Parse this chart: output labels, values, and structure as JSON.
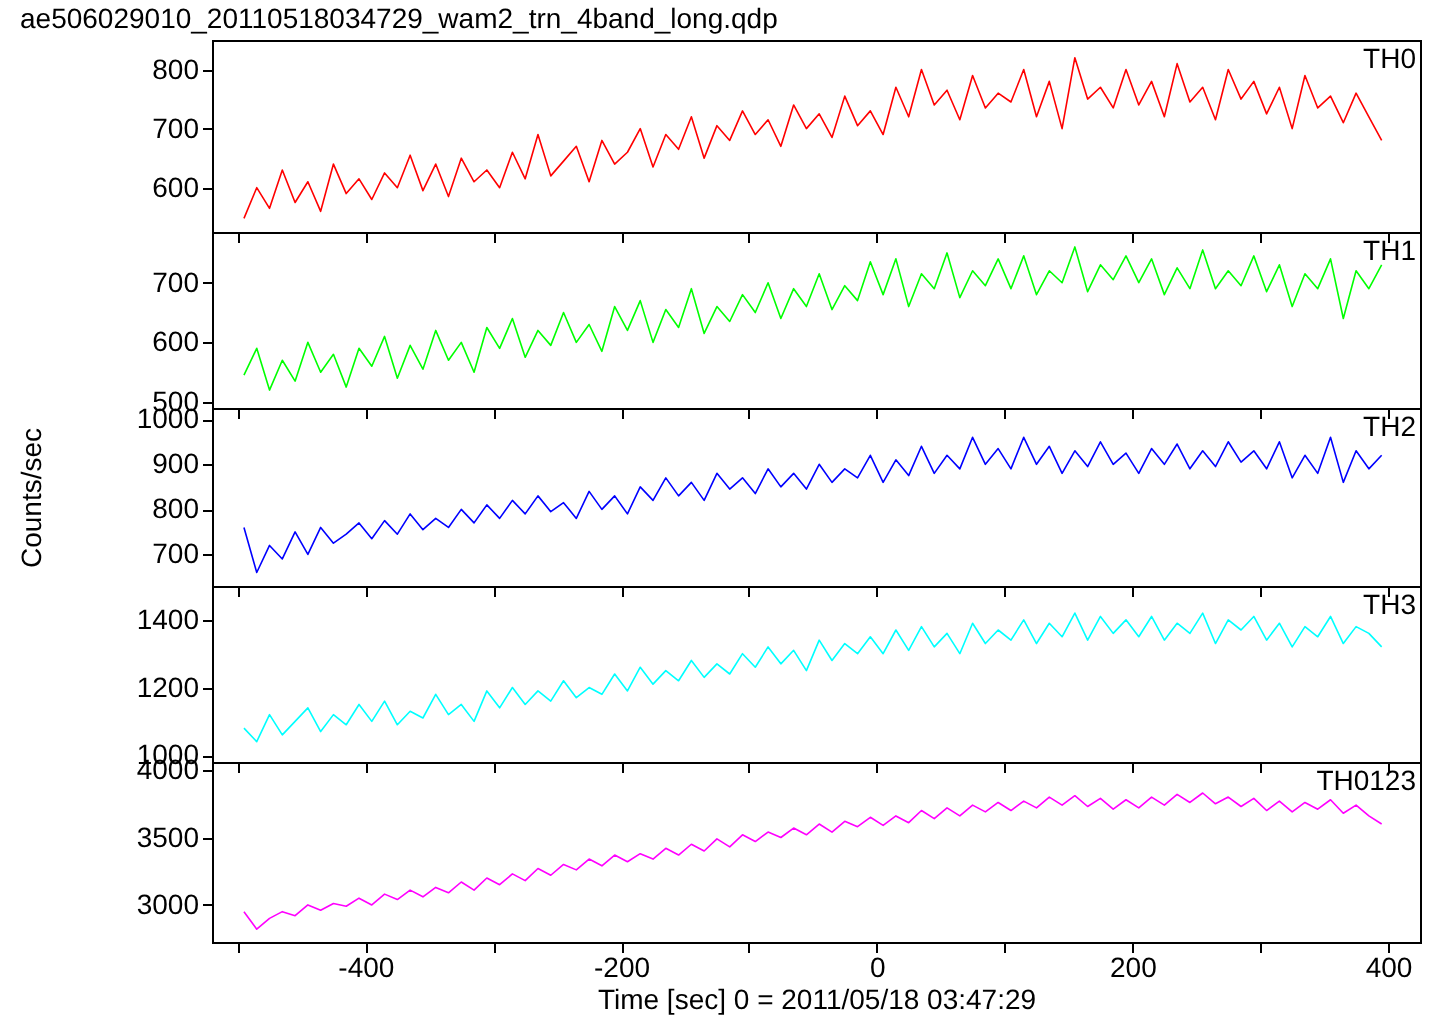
{
  "chart_data": [
    {
      "type": "line",
      "title": "ae506029010_20110518034729_wam2_trn_4band_long.qdp",
      "tick_labels": "y",
      "legend": false,
      "xlim": [
        -520,
        425
      ],
      "xticks": [
        {
          "value": -500,
          "label": null
        },
        -400,
        {
          "value": -300,
          "label": null
        },
        -200,
        {
          "value": -100,
          "label": null
        },
        0,
        {
          "value": 100,
          "label": null
        },
        200,
        {
          "value": 300,
          "label": null
        },
        400
      ],
      "ylim": [
        525,
        850
      ],
      "yticks": [
        600,
        700,
        800
      ],
      "x": [
        -495,
        -485,
        -475,
        -465,
        -455,
        -445,
        -435,
        -425,
        -415,
        -405,
        -395,
        -385,
        -375,
        -365,
        -355,
        -345,
        -335,
        -325,
        -315,
        -305,
        -295,
        -285,
        -275,
        -265,
        -255,
        -245,
        -235,
        -225,
        -215,
        -205,
        -195,
        -185,
        -175,
        -165,
        -155,
        -145,
        -135,
        -125,
        -115,
        -105,
        -95,
        -85,
        -75,
        -65,
        -55,
        -45,
        -35,
        -25,
        -15,
        -5,
        5,
        15,
        25,
        35,
        45,
        55,
        65,
        75,
        85,
        95,
        105,
        115,
        125,
        135,
        145,
        155,
        165,
        175,
        185,
        195,
        205,
        215,
        225,
        235,
        245,
        255,
        265,
        275,
        285,
        295,
        305,
        315,
        325,
        335,
        345,
        355,
        365,
        375,
        385,
        395
      ],
      "series": [
        {
          "name": "TH0",
          "color": "#ff0000",
          "values": [
            548,
            600,
            565,
            630,
            575,
            610,
            560,
            640,
            590,
            615,
            580,
            625,
            600,
            655,
            595,
            640,
            585,
            650,
            610,
            630,
            600,
            660,
            615,
            690,
            620,
            645,
            670,
            610,
            680,
            640,
            660,
            700,
            635,
            690,
            665,
            720,
            650,
            705,
            680,
            730,
            690,
            715,
            670,
            740,
            700,
            725,
            685,
            755,
            705,
            730,
            690,
            770,
            720,
            800,
            740,
            765,
            715,
            790,
            735,
            760,
            745,
            800,
            720,
            780,
            700,
            820,
            750,
            770,
            735,
            800,
            740,
            780,
            720,
            810,
            745,
            770,
            715,
            800,
            750,
            780,
            725,
            770,
            700,
            790,
            735,
            755,
            710,
            760,
            720,
            680
          ]
        }
      ]
    },
    {
      "type": "line",
      "tick_labels": "y",
      "legend": false,
      "xlim": [
        -520,
        425
      ],
      "xticks": [
        {
          "value": -500,
          "label": null
        },
        -400,
        {
          "value": -300,
          "label": null
        },
        -200,
        {
          "value": -100,
          "label": null
        },
        0,
        {
          "value": 100,
          "label": null
        },
        200,
        {
          "value": 300,
          "label": null
        },
        400
      ],
      "ylim": [
        490,
        785
      ],
      "yticks": [
        500,
        600,
        700
      ],
      "x": [
        -495,
        -485,
        -475,
        -465,
        -455,
        -445,
        -435,
        -425,
        -415,
        -405,
        -395,
        -385,
        -375,
        -365,
        -355,
        -345,
        -335,
        -325,
        -315,
        -305,
        -295,
        -285,
        -275,
        -265,
        -255,
        -245,
        -235,
        -225,
        -215,
        -205,
        -195,
        -185,
        -175,
        -165,
        -155,
        -145,
        -135,
        -125,
        -115,
        -105,
        -95,
        -85,
        -75,
        -65,
        -55,
        -45,
        -35,
        -25,
        -15,
        -5,
        5,
        15,
        25,
        35,
        45,
        55,
        65,
        75,
        85,
        95,
        105,
        115,
        125,
        135,
        145,
        155,
        165,
        175,
        185,
        195,
        205,
        215,
        225,
        235,
        245,
        255,
        265,
        275,
        285,
        295,
        305,
        315,
        325,
        335,
        345,
        355,
        365,
        375,
        385,
        395
      ],
      "series": [
        {
          "name": "TH1",
          "color": "#00ff00",
          "values": [
            545,
            590,
            520,
            570,
            535,
            600,
            550,
            580,
            525,
            590,
            560,
            610,
            540,
            595,
            555,
            620,
            570,
            600,
            550,
            625,
            590,
            640,
            575,
            620,
            595,
            650,
            600,
            630,
            585,
            660,
            620,
            670,
            600,
            655,
            625,
            690,
            615,
            660,
            635,
            680,
            650,
            700,
            640,
            690,
            660,
            715,
            655,
            695,
            670,
            735,
            680,
            740,
            660,
            715,
            690,
            750,
            675,
            720,
            695,
            740,
            690,
            745,
            680,
            720,
            700,
            760,
            685,
            730,
            705,
            745,
            700,
            740,
            680,
            725,
            690,
            755,
            690,
            720,
            695,
            745,
            685,
            730,
            660,
            715,
            690,
            740,
            640,
            720,
            690,
            730
          ]
        }
      ]
    },
    {
      "type": "line",
      "tick_labels": "y",
      "legend": false,
      "ylabel": "Counts/sec",
      "xlim": [
        -520,
        425
      ],
      "xticks": [
        {
          "value": -500,
          "label": null
        },
        -400,
        {
          "value": -300,
          "label": null
        },
        -200,
        {
          "value": -100,
          "label": null
        },
        0,
        {
          "value": 100,
          "label": null
        },
        200,
        {
          "value": 300,
          "label": null
        },
        400
      ],
      "ylim": [
        630,
        1025
      ],
      "yticks": [
        700,
        800,
        900,
        1000
      ],
      "x": [
        -495,
        -485,
        -475,
        -465,
        -455,
        -445,
        -435,
        -425,
        -415,
        -405,
        -395,
        -385,
        -375,
        -365,
        -355,
        -345,
        -335,
        -325,
        -315,
        -305,
        -295,
        -285,
        -275,
        -265,
        -255,
        -245,
        -235,
        -225,
        -215,
        -205,
        -195,
        -185,
        -175,
        -165,
        -155,
        -145,
        -135,
        -125,
        -115,
        -105,
        -95,
        -85,
        -75,
        -65,
        -55,
        -45,
        -35,
        -25,
        -15,
        -5,
        5,
        15,
        25,
        35,
        45,
        55,
        65,
        75,
        85,
        95,
        105,
        115,
        125,
        135,
        145,
        155,
        165,
        175,
        185,
        195,
        205,
        215,
        225,
        235,
        245,
        255,
        265,
        275,
        285,
        295,
        305,
        315,
        325,
        335,
        345,
        355,
        365,
        375,
        385,
        395
      ],
      "series": [
        {
          "name": "TH2",
          "color": "#0000ff",
          "values": [
            760,
            660,
            720,
            690,
            750,
            700,
            760,
            725,
            745,
            770,
            735,
            775,
            745,
            790,
            755,
            780,
            760,
            800,
            770,
            810,
            780,
            820,
            790,
            830,
            795,
            815,
            780,
            840,
            800,
            830,
            790,
            850,
            820,
            870,
            830,
            860,
            820,
            880,
            845,
            870,
            835,
            890,
            850,
            880,
            845,
            900,
            860,
            890,
            870,
            920,
            860,
            910,
            875,
            940,
            880,
            920,
            890,
            960,
            900,
            935,
            890,
            960,
            900,
            940,
            880,
            930,
            895,
            950,
            900,
            925,
            880,
            935,
            900,
            945,
            890,
            930,
            895,
            950,
            905,
            930,
            890,
            950,
            870,
            920,
            880,
            960,
            860,
            930,
            890,
            920
          ]
        }
      ]
    },
    {
      "type": "line",
      "tick_labels": "y",
      "legend": false,
      "xlim": [
        -520,
        425
      ],
      "xticks": [
        {
          "value": -500,
          "label": null
        },
        -400,
        {
          "value": -300,
          "label": null
        },
        -200,
        {
          "value": -100,
          "label": null
        },
        0,
        {
          "value": 100,
          "label": null
        },
        200,
        {
          "value": 300,
          "label": null
        },
        400
      ],
      "ylim": [
        980,
        1500
      ],
      "yticks": [
        1000,
        1200,
        1400
      ],
      "x": [
        -495,
        -485,
        -475,
        -465,
        -455,
        -445,
        -435,
        -425,
        -415,
        -405,
        -395,
        -385,
        -375,
        -365,
        -355,
        -345,
        -335,
        -325,
        -315,
        -305,
        -295,
        -285,
        -275,
        -265,
        -255,
        -245,
        -235,
        -225,
        -215,
        -205,
        -195,
        -185,
        -175,
        -165,
        -155,
        -145,
        -135,
        -125,
        -115,
        -105,
        -95,
        -85,
        -75,
        -65,
        -55,
        -45,
        -35,
        -25,
        -15,
        -5,
        5,
        15,
        25,
        35,
        45,
        55,
        65,
        75,
        85,
        95,
        105,
        115,
        125,
        135,
        145,
        155,
        165,
        175,
        185,
        195,
        205,
        215,
        225,
        235,
        245,
        255,
        265,
        275,
        285,
        295,
        305,
        315,
        325,
        335,
        345,
        355,
        365,
        375,
        385,
        395
      ],
      "series": [
        {
          "name": "TH3",
          "color": "#00ffff",
          "values": [
            1080,
            1040,
            1120,
            1060,
            1100,
            1140,
            1070,
            1120,
            1090,
            1150,
            1100,
            1160,
            1090,
            1130,
            1110,
            1180,
            1120,
            1150,
            1100,
            1190,
            1140,
            1200,
            1150,
            1190,
            1160,
            1220,
            1170,
            1200,
            1180,
            1240,
            1190,
            1260,
            1210,
            1250,
            1220,
            1280,
            1230,
            1270,
            1240,
            1300,
            1260,
            1320,
            1270,
            1310,
            1250,
            1340,
            1280,
            1330,
            1300,
            1350,
            1300,
            1370,
            1310,
            1380,
            1320,
            1360,
            1300,
            1390,
            1330,
            1370,
            1340,
            1400,
            1330,
            1390,
            1350,
            1420,
            1340,
            1410,
            1360,
            1400,
            1350,
            1410,
            1340,
            1390,
            1360,
            1420,
            1330,
            1400,
            1370,
            1410,
            1340,
            1390,
            1320,
            1380,
            1350,
            1410,
            1330,
            1380,
            1360,
            1320
          ]
        }
      ]
    },
    {
      "type": "line",
      "legend": false,
      "xlabel": "Time [sec] 0 = 2011/05/18 03:47:29",
      "xlim": [
        -520,
        425
      ],
      "xticks": [
        {
          "value": -500,
          "label": null
        },
        -400,
        {
          "value": -300,
          "label": null
        },
        -200,
        {
          "value": -100,
          "label": null
        },
        0,
        {
          "value": 100,
          "label": null
        },
        200,
        {
          "value": 300,
          "label": null
        },
        400
      ],
      "ylim": [
        2725,
        4060
      ],
      "yticks": [
        3000,
        3500,
        4000
      ],
      "x": [
        -495,
        -485,
        -475,
        -465,
        -455,
        -445,
        -435,
        -425,
        -415,
        -405,
        -395,
        -385,
        -375,
        -365,
        -355,
        -345,
        -335,
        -325,
        -315,
        -305,
        -295,
        -285,
        -275,
        -265,
        -255,
        -245,
        -235,
        -225,
        -215,
        -205,
        -195,
        -185,
        -175,
        -165,
        -155,
        -145,
        -135,
        -125,
        -115,
        -105,
        -95,
        -85,
        -75,
        -65,
        -55,
        -45,
        -35,
        -25,
        -15,
        -5,
        5,
        15,
        25,
        35,
        45,
        55,
        65,
        75,
        85,
        95,
        105,
        115,
        125,
        135,
        145,
        155,
        165,
        175,
        185,
        195,
        205,
        215,
        225,
        235,
        245,
        255,
        265,
        275,
        285,
        295,
        305,
        315,
        325,
        335,
        345,
        355,
        365,
        375,
        385,
        395
      ],
      "series": [
        {
          "name": "TH0123",
          "color": "#ff00ff",
          "values": [
            2950,
            2820,
            2900,
            2950,
            2920,
            3000,
            2960,
            3010,
            2990,
            3050,
            3000,
            3080,
            3040,
            3110,
            3060,
            3130,
            3090,
            3170,
            3110,
            3200,
            3150,
            3230,
            3180,
            3270,
            3220,
            3300,
            3260,
            3340,
            3290,
            3370,
            3320,
            3380,
            3340,
            3420,
            3370,
            3450,
            3400,
            3490,
            3430,
            3520,
            3470,
            3540,
            3500,
            3570,
            3520,
            3600,
            3540,
            3620,
            3580,
            3650,
            3590,
            3660,
            3610,
            3700,
            3640,
            3720,
            3660,
            3740,
            3690,
            3760,
            3700,
            3770,
            3720,
            3800,
            3740,
            3810,
            3730,
            3790,
            3710,
            3780,
            3720,
            3800,
            3740,
            3820,
            3760,
            3830,
            3750,
            3800,
            3730,
            3790,
            3700,
            3770,
            3690,
            3760,
            3710,
            3780,
            3680,
            3740,
            3660,
            3600
          ]
        }
      ]
    }
  ]
}
